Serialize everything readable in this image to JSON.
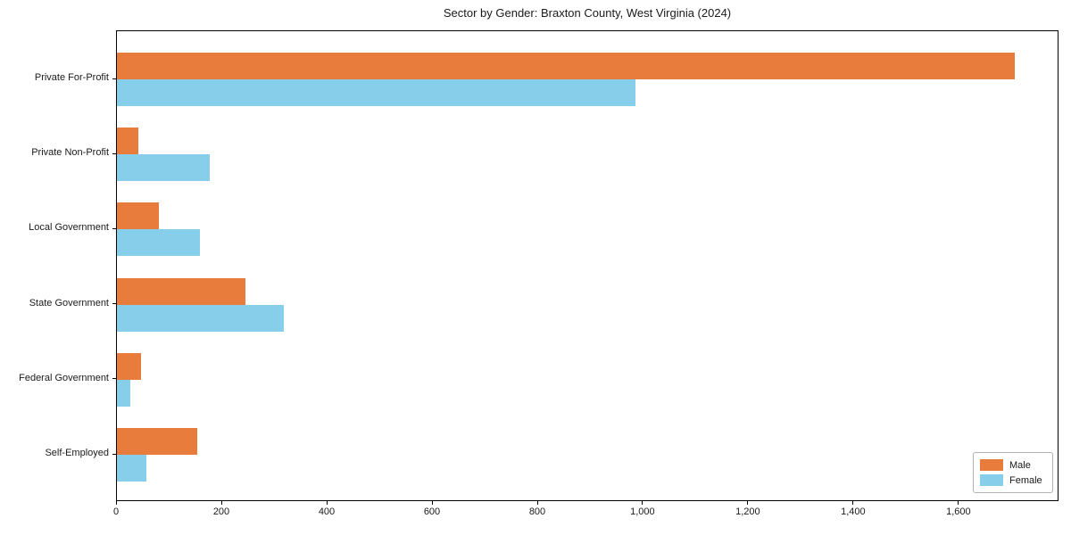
{
  "title": "Sector by Gender: Braxton County, West Virginia (2024)",
  "colors": {
    "male": "#e87c3c",
    "female": "#87ceeb",
    "axis": "#000000",
    "legend_border": "#b3b3b3",
    "background": "#ffffff"
  },
  "chart_data": {
    "type": "bar",
    "orientation": "horizontal",
    "title": "Sector by Gender: Braxton County, West Virginia (2024)",
    "xlabel": "",
    "ylabel": "",
    "grid": false,
    "categories": [
      "Private For-Profit",
      "Private Non-Profit",
      "Local Government",
      "State Government",
      "Federal Government",
      "Self-Employed"
    ],
    "series": [
      {
        "name": "Male",
        "color": "#e87c3c",
        "values": [
          1705,
          40,
          80,
          244,
          46,
          153
        ]
      },
      {
        "name": "Female",
        "color": "#87ceeb",
        "values": [
          985,
          177,
          158,
          317,
          26,
          56
        ]
      }
    ],
    "xlim": [
      0,
      1790
    ],
    "xticks": [
      {
        "value": 0,
        "label": "0"
      },
      {
        "value": 200,
        "label": "200"
      },
      {
        "value": 400,
        "label": "400"
      },
      {
        "value": 600,
        "label": "600"
      },
      {
        "value": 800,
        "label": "800"
      },
      {
        "value": 1000,
        "label": "1,000"
      },
      {
        "value": 1200,
        "label": "1,200"
      },
      {
        "value": 1400,
        "label": "1,400"
      },
      {
        "value": 1600,
        "label": "1,600"
      }
    ],
    "legend": {
      "position": "lower right"
    }
  }
}
